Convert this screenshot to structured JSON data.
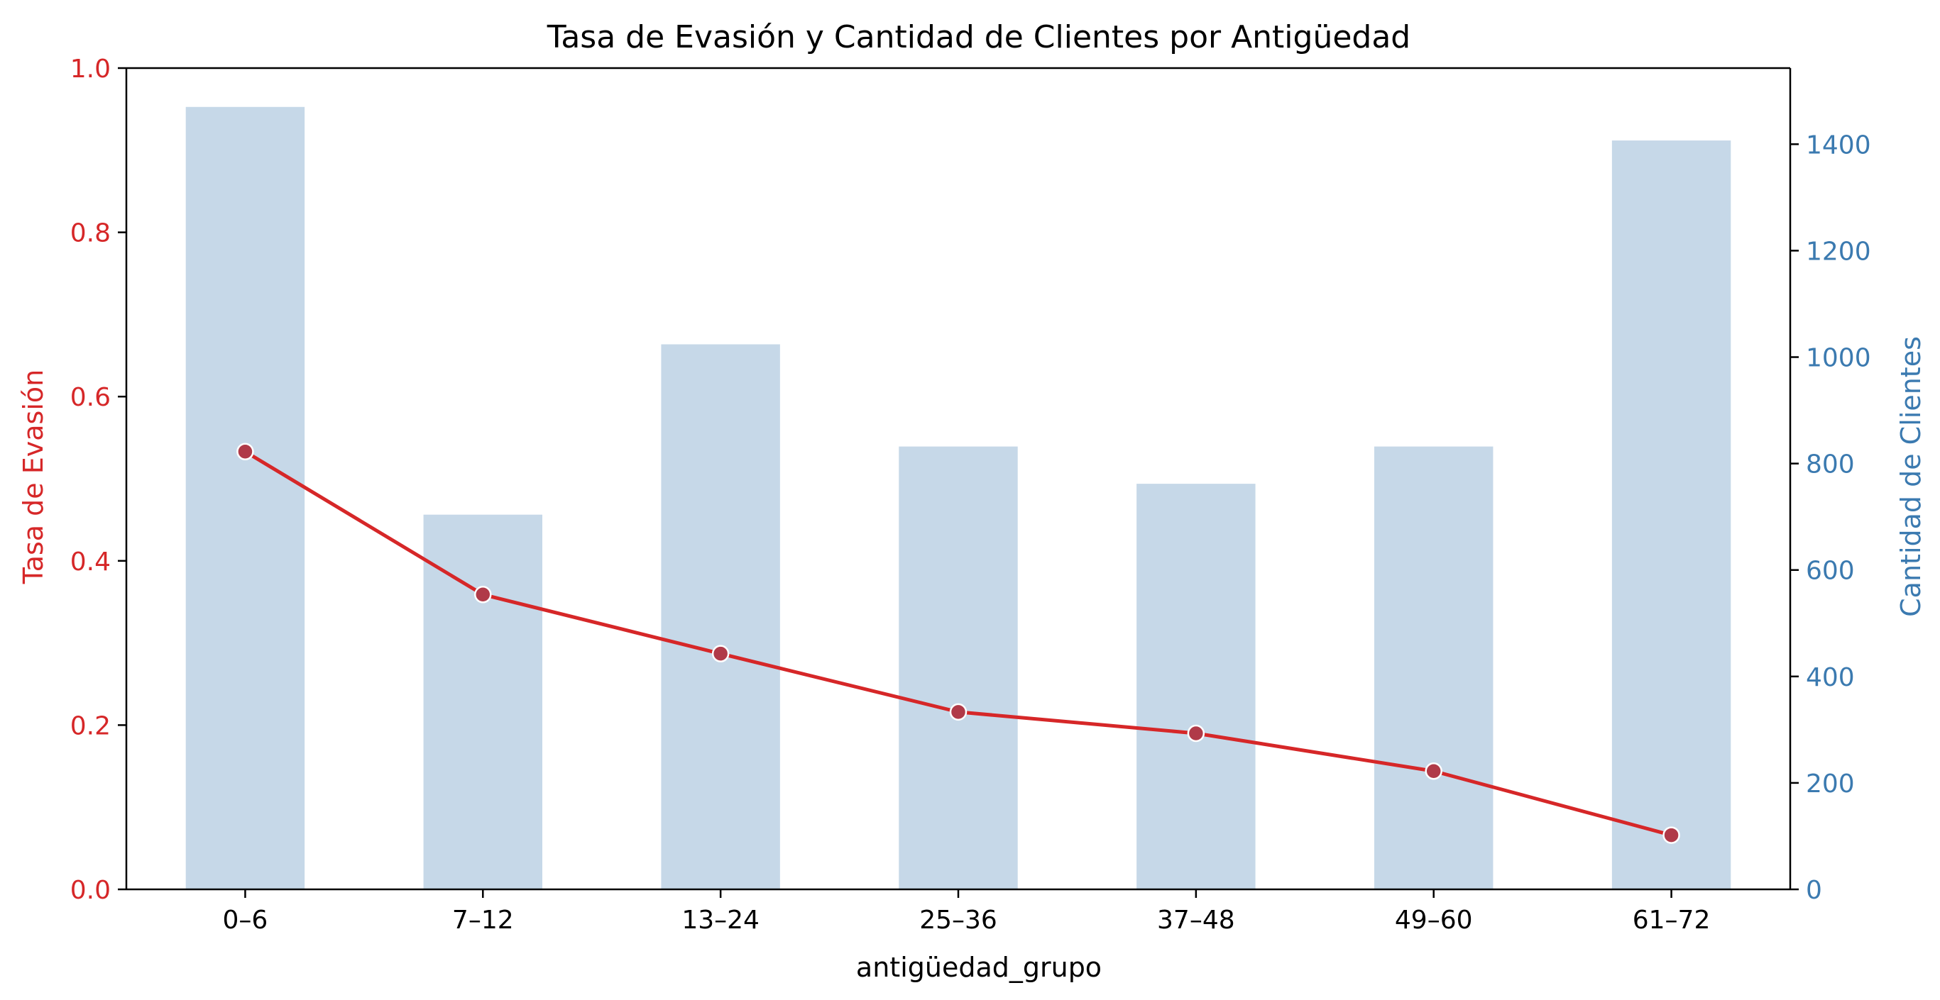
{
  "chart_data": {
    "type": "bar+line",
    "title": "Tasa de Evasión y Cantidad de Clientes por Antigüedad",
    "xlabel": "antigüedad_grupo",
    "ylabel_left": "Tasa de Evasión",
    "ylabel_right": "Cantidad de Clientes",
    "categories": [
      "0–6",
      "7–12",
      "13–24",
      "25–36",
      "37–48",
      "49–60",
      "61–72"
    ],
    "line_series": {
      "values": [
        0.533,
        0.359,
        0.287,
        0.216,
        0.19,
        0.144,
        0.066
      ],
      "color": "#d62728",
      "marker_color": "#b03a48"
    },
    "bar_series": {
      "values": [
        1470,
        704,
        1024,
        832,
        762,
        832,
        1407
      ],
      "color": "#c6d8e8"
    },
    "left_axis": {
      "ylim": [
        0,
        1.0
      ],
      "ticks": [
        0.0,
        0.2,
        0.4,
        0.6,
        0.8,
        1.0
      ],
      "tick_labels": [
        "0.0",
        "0.2",
        "0.4",
        "0.6",
        "0.8",
        "1.0"
      ],
      "color": "#d62728"
    },
    "right_axis": {
      "ylim": [
        0,
        1543
      ],
      "ticks": [
        0,
        200,
        400,
        600,
        800,
        1000,
        1200,
        1400
      ],
      "tick_labels": [
        "0",
        "200",
        "400",
        "600",
        "800",
        "1000",
        "1200",
        "1400"
      ],
      "color": "#3b7ab0"
    },
    "grid": false,
    "legend": "none"
  }
}
